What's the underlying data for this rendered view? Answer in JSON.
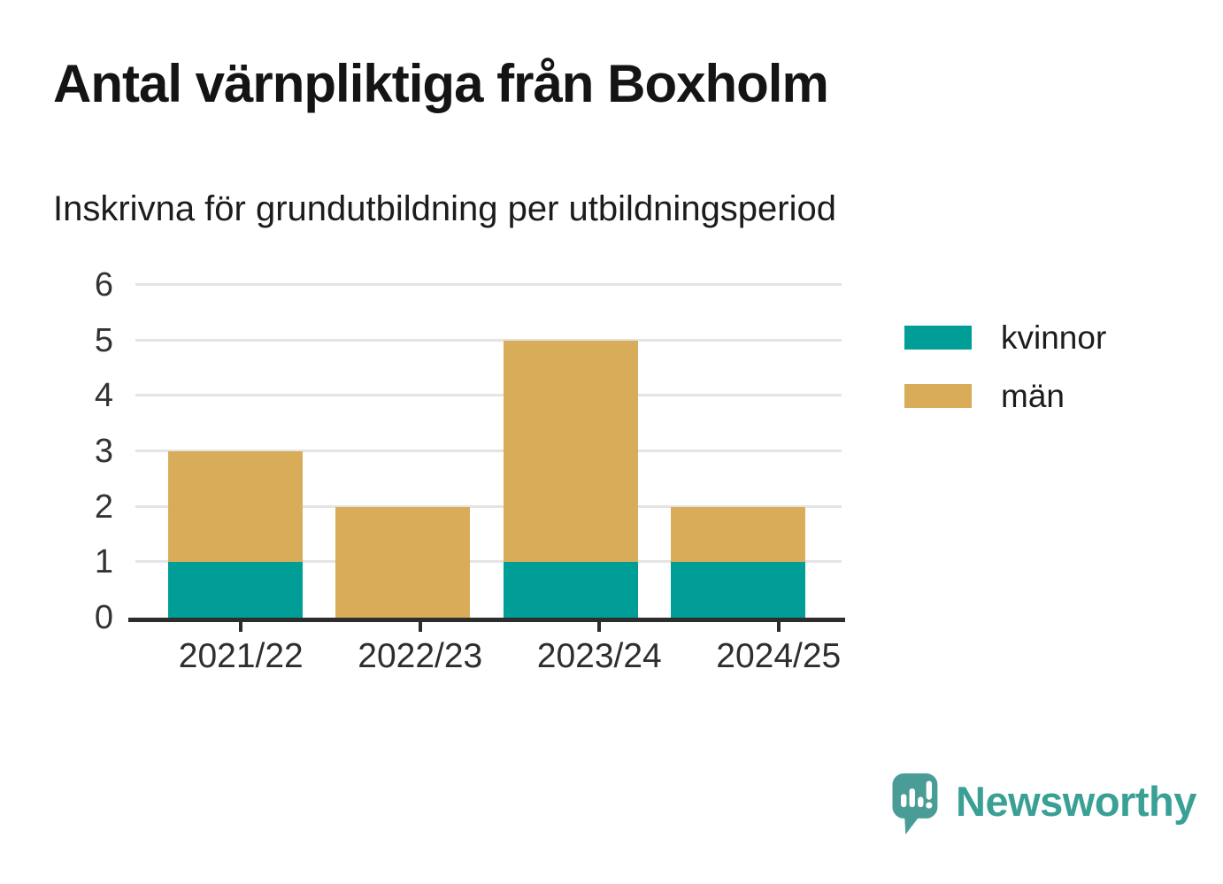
{
  "header": {
    "title": "Antal värnpliktiga från Boxholm",
    "subtitle": "Inskrivna för grundutbildning per utbildningsperiod"
  },
  "chart_data": {
    "type": "bar",
    "stacked": true,
    "categories": [
      "2021/22",
      "2022/23",
      "2023/24",
      "2024/25"
    ],
    "series": [
      {
        "name": "kvinnor",
        "color": "#009e96",
        "values": [
          1,
          0,
          1,
          1
        ]
      },
      {
        "name": "män",
        "color": "#d9ac5a",
        "values": [
          2,
          2,
          4,
          1
        ]
      }
    ],
    "totals": [
      3,
      2,
      5,
      2
    ],
    "title": "Antal värnpliktiga från Boxholm",
    "xlabel": "",
    "ylabel": "",
    "ylim": [
      0,
      6
    ],
    "yticks": [
      0,
      1,
      2,
      3,
      4,
      5,
      6
    ],
    "grid": "horizontal",
    "legend_position": "right"
  },
  "footer": {
    "brand": "Newsworthy",
    "brand_color": "#3aa096",
    "logo_icon": "speech-bubble-bar-chart-icon"
  },
  "colors": {
    "background": "#ffffff",
    "axis_line": "#2d2d2d",
    "gridline": "#e4e4e4",
    "tick_text": "#333333"
  }
}
